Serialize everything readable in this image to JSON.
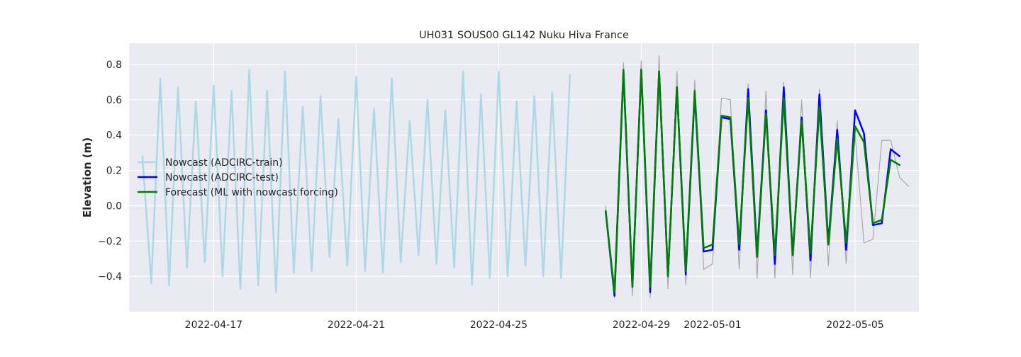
{
  "chart_data": {
    "type": "line",
    "title": "UH031 SOUS00 GL142 Nuku Hiva France",
    "xlabel": "",
    "ylabel": "Elevation (m)",
    "x_is_date": true,
    "xlim": [
      "2022-04-14T15:00",
      "2022-05-06T19:00"
    ],
    "ylim": [
      -0.6,
      0.92
    ],
    "xticks": [
      "2022-04-17",
      "2022-04-21",
      "2022-04-25",
      "2022-04-29",
      "2022-05-01",
      "2022-05-05"
    ],
    "yticks": [
      -0.4,
      -0.2,
      0.0,
      0.2,
      0.4,
      0.6,
      0.8
    ],
    "ytick_labels": [
      "−0.4",
      "−0.2",
      "0.0",
      "0.2",
      "0.4",
      "0.6",
      "0.8"
    ],
    "grid": true,
    "legend_position": "center-left",
    "colors": {
      "background": "#eaeaf2",
      "grid": "#ffffff"
    },
    "series": [
      {
        "name": "",
        "color": "#a9a9a9",
        "width": 1.2,
        "x": [
          "2022-04-28T00:00",
          "2022-04-28T06:00",
          "2022-04-28T12:00",
          "2022-04-28T18:00",
          "2022-04-29T00:00",
          "2022-04-29T06:00",
          "2022-04-29T12:00",
          "2022-04-29T18:00",
          "2022-04-30T00:00",
          "2022-04-30T06:00",
          "2022-04-30T12:00",
          "2022-04-30T18:00",
          "2022-05-01T00:00",
          "2022-05-01T06:00",
          "2022-05-01T12:00",
          "2022-05-01T18:00",
          "2022-05-02T00:00",
          "2022-05-02T06:00",
          "2022-05-02T12:00",
          "2022-05-02T18:00",
          "2022-05-03T00:00",
          "2022-05-03T06:00",
          "2022-05-03T12:00",
          "2022-05-03T18:00",
          "2022-05-04T00:00",
          "2022-05-04T06:00",
          "2022-05-04T12:00",
          "2022-05-04T18:00",
          "2022-05-05T00:00",
          "2022-05-05T06:00",
          "2022-05-05T12:00",
          "2022-05-05T18:00",
          "2022-05-06T00:00",
          "2022-05-06T06:00",
          "2022-05-06T12:00"
        ],
        "y": [
          0.0,
          -0.52,
          0.81,
          -0.51,
          0.82,
          -0.52,
          0.85,
          -0.47,
          0.76,
          -0.45,
          0.71,
          -0.36,
          -0.33,
          0.61,
          0.6,
          -0.36,
          0.69,
          -0.41,
          0.65,
          -0.41,
          0.7,
          -0.39,
          0.6,
          -0.41,
          0.66,
          -0.34,
          0.48,
          -0.33,
          0.4,
          -0.21,
          -0.19,
          0.37,
          0.37,
          0.16,
          0.11
        ]
      },
      {
        "name": "Nowcast (ADCIRC-train)",
        "color": "#add8e6",
        "width": 2.5,
        "x": [
          "2022-04-15T00:00",
          "2022-04-15T06:00",
          "2022-04-15T12:00",
          "2022-04-15T18:00",
          "2022-04-16T00:00",
          "2022-04-16T06:00",
          "2022-04-16T12:00",
          "2022-04-16T18:00",
          "2022-04-17T00:00",
          "2022-04-17T06:00",
          "2022-04-17T12:00",
          "2022-04-17T18:00",
          "2022-04-18T00:00",
          "2022-04-18T06:00",
          "2022-04-18T12:00",
          "2022-04-18T18:00",
          "2022-04-19T00:00",
          "2022-04-19T06:00",
          "2022-04-19T12:00",
          "2022-04-19T18:00",
          "2022-04-20T00:00",
          "2022-04-20T06:00",
          "2022-04-20T12:00",
          "2022-04-20T18:00",
          "2022-04-21T00:00",
          "2022-04-21T06:00",
          "2022-04-21T12:00",
          "2022-04-21T18:00",
          "2022-04-22T00:00",
          "2022-04-22T06:00",
          "2022-04-22T12:00",
          "2022-04-22T18:00",
          "2022-04-23T00:00",
          "2022-04-23T06:00",
          "2022-04-23T12:00",
          "2022-04-23T18:00",
          "2022-04-24T00:00",
          "2022-04-24T06:00",
          "2022-04-24T12:00",
          "2022-04-24T18:00",
          "2022-04-25T00:00",
          "2022-04-25T06:00",
          "2022-04-25T12:00",
          "2022-04-25T18:00",
          "2022-04-26T00:00",
          "2022-04-26T06:00",
          "2022-04-26T12:00",
          "2022-04-26T18:00",
          "2022-04-27T00:00",
          "2022-04-27T06:00",
          "2022-04-27T12:00",
          "2022-04-27T18:00",
          "2022-04-28T00:00",
          "2022-04-28T06:00",
          "2022-04-28T12:00",
          "2022-04-28T18:00",
          "2022-04-29T00:00",
          "2022-04-29T06:00",
          "2022-04-29T12:00",
          "2022-04-29T18:00",
          "2022-04-30T00:00",
          "2022-04-30T06:00",
          "2022-04-30T12:00",
          "2022-04-30T18:00",
          "2022-05-01T00:00",
          "2022-05-01T06:00",
          "2022-05-01T12:00",
          "2022-05-01T18:00",
          "2022-05-02T00:00",
          "2022-05-02T06:00",
          "2022-05-02T12:00",
          "2022-05-02T18:00",
          "2022-05-03T00:00",
          "2022-05-03T06:00",
          "2022-05-03T12:00",
          "2022-05-03T18:00",
          "2022-05-04T00:00",
          "2022-05-04T06:00"
        ],
        "y": [
          0.28,
          -0.44,
          0.72,
          -0.45,
          0.67,
          -0.35,
          0.59,
          -0.32,
          0.68,
          -0.4,
          0.65,
          -0.47,
          0.77,
          -0.45,
          0.65,
          -0.49,
          0.76,
          -0.38,
          0.56,
          -0.37,
          0.62,
          -0.29,
          0.49,
          -0.34,
          0.73,
          -0.37,
          0.55,
          -0.38,
          0.72,
          -0.32,
          0.48,
          -0.28,
          0.6,
          -0.33,
          0.54,
          -0.35,
          0.76,
          -0.45,
          0.63,
          -0.41,
          0.76,
          -0.4,
          0.59,
          -0.34,
          0.62,
          -0.4,
          0.64,
          -0.41,
          0.74,
          null,
          null,
          null,
          null,
          null,
          null,
          null,
          null,
          null,
          null,
          null,
          null,
          null,
          null,
          null,
          null,
          null,
          null,
          null,
          null,
          null,
          null,
          null,
          null,
          null,
          null,
          null,
          null,
          null
        ]
      },
      {
        "name": "Nowcast (ADCIRC-test)",
        "color": "#0000ff",
        "width": 2.5,
        "x": [
          "2022-04-28T00:00",
          "2022-04-28T06:00",
          "2022-04-28T12:00",
          "2022-04-28T18:00",
          "2022-04-29T00:00",
          "2022-04-29T06:00",
          "2022-04-29T12:00",
          "2022-04-29T18:00",
          "2022-04-30T00:00",
          "2022-04-30T06:00",
          "2022-04-30T12:00",
          "2022-04-30T18:00",
          "2022-05-01T00:00",
          "2022-05-01T06:00",
          "2022-05-01T12:00",
          "2022-05-01T18:00",
          "2022-05-02T00:00",
          "2022-05-02T06:00",
          "2022-05-02T12:00",
          "2022-05-02T18:00",
          "2022-05-03T00:00",
          "2022-05-03T06:00",
          "2022-05-03T12:00",
          "2022-05-03T18:00",
          "2022-05-04T00:00",
          "2022-05-04T06:00",
          "2022-05-04T12:00",
          "2022-05-04T18:00",
          "2022-05-05T00:00",
          "2022-05-05T06:00",
          "2022-05-05T12:00",
          "2022-05-05T18:00",
          "2022-05-06T00:00",
          "2022-05-06T06:00",
          "2022-05-06T12:00"
        ],
        "y": [
          -0.03,
          -0.51,
          0.76,
          -0.46,
          0.77,
          -0.49,
          0.76,
          -0.4,
          0.67,
          -0.39,
          0.63,
          -0.26,
          -0.25,
          0.5,
          0.49,
          -0.25,
          0.66,
          -0.27,
          0.54,
          -0.33,
          0.67,
          -0.28,
          0.5,
          -0.31,
          0.63,
          -0.21,
          0.43,
          -0.25,
          0.54,
          0.41,
          -0.11,
          -0.1,
          0.32,
          0.28,
          null
        ]
      },
      {
        "name": "Forecast (ML with nowcast forcing)",
        "color": "#008000",
        "width": 2.5,
        "x": [
          "2022-04-28T00:00",
          "2022-04-28T06:00",
          "2022-04-28T12:00",
          "2022-04-28T18:00",
          "2022-04-29T00:00",
          "2022-04-29T06:00",
          "2022-04-29T12:00",
          "2022-04-29T18:00",
          "2022-04-30T00:00",
          "2022-04-30T06:00",
          "2022-04-30T12:00",
          "2022-04-30T18:00",
          "2022-05-01T00:00",
          "2022-05-01T06:00",
          "2022-05-01T12:00",
          "2022-05-01T18:00",
          "2022-05-02T00:00",
          "2022-05-02T06:00",
          "2022-05-02T12:00",
          "2022-05-02T18:00",
          "2022-05-03T00:00",
          "2022-05-03T06:00",
          "2022-05-03T12:00",
          "2022-05-03T18:00",
          "2022-05-04T00:00",
          "2022-05-04T06:00",
          "2022-05-04T12:00",
          "2022-05-04T18:00",
          "2022-05-05T00:00",
          "2022-05-05T06:00",
          "2022-05-05T12:00",
          "2022-05-05T18:00",
          "2022-05-06T00:00",
          "2022-05-06T06:00",
          "2022-05-06T12:00"
        ],
        "y": [
          -0.03,
          -0.49,
          0.77,
          -0.46,
          0.77,
          -0.46,
          0.76,
          -0.4,
          0.67,
          -0.37,
          0.65,
          -0.24,
          -0.22,
          0.51,
          0.5,
          -0.22,
          0.61,
          -0.29,
          0.52,
          -0.28,
          0.61,
          -0.28,
          0.48,
          -0.27,
          0.56,
          -0.22,
          0.38,
          -0.21,
          0.45,
          0.36,
          -0.1,
          -0.08,
          0.26,
          0.23,
          null
        ]
      }
    ],
    "legend": [
      {
        "label": "Nowcast (ADCIRC-train)",
        "color": "#add8e6"
      },
      {
        "label": "Nowcast (ADCIRC-test)",
        "color": "#0000ff"
      },
      {
        "label": "Forecast (ML with nowcast forcing)",
        "color": "#008000"
      }
    ]
  }
}
